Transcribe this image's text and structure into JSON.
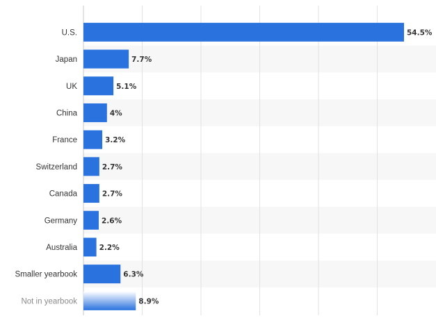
{
  "chart_data": {
    "type": "bar",
    "orientation": "horizontal",
    "categories": [
      "U.S.",
      "Japan",
      "UK",
      "China",
      "France",
      "Switzerland",
      "Canada",
      "Germany",
      "Australia",
      "Smaller yearbook",
      "Not in yearbook"
    ],
    "values": [
      54.5,
      7.7,
      5.1,
      4,
      3.2,
      2.7,
      2.7,
      2.6,
      2.2,
      6.3,
      8.9
    ],
    "value_labels": [
      "54.5%",
      "7.7%",
      "5.1%",
      "4%",
      "3.2%",
      "2.7%",
      "2.7%",
      "2.6%",
      "2.2%",
      "6.3%",
      "8.9%"
    ],
    "faded_categories": [
      "Not in yearbook"
    ],
    "xlim": [
      0,
      60
    ],
    "grid": true,
    "alternating_row_bands": true,
    "colors": {
      "bar": "#2a72de",
      "bar_fade_top": "#ffffff",
      "band": "#f7f7f7",
      "grid": "#e2e2e2",
      "axis": "#c8c8c8"
    }
  }
}
